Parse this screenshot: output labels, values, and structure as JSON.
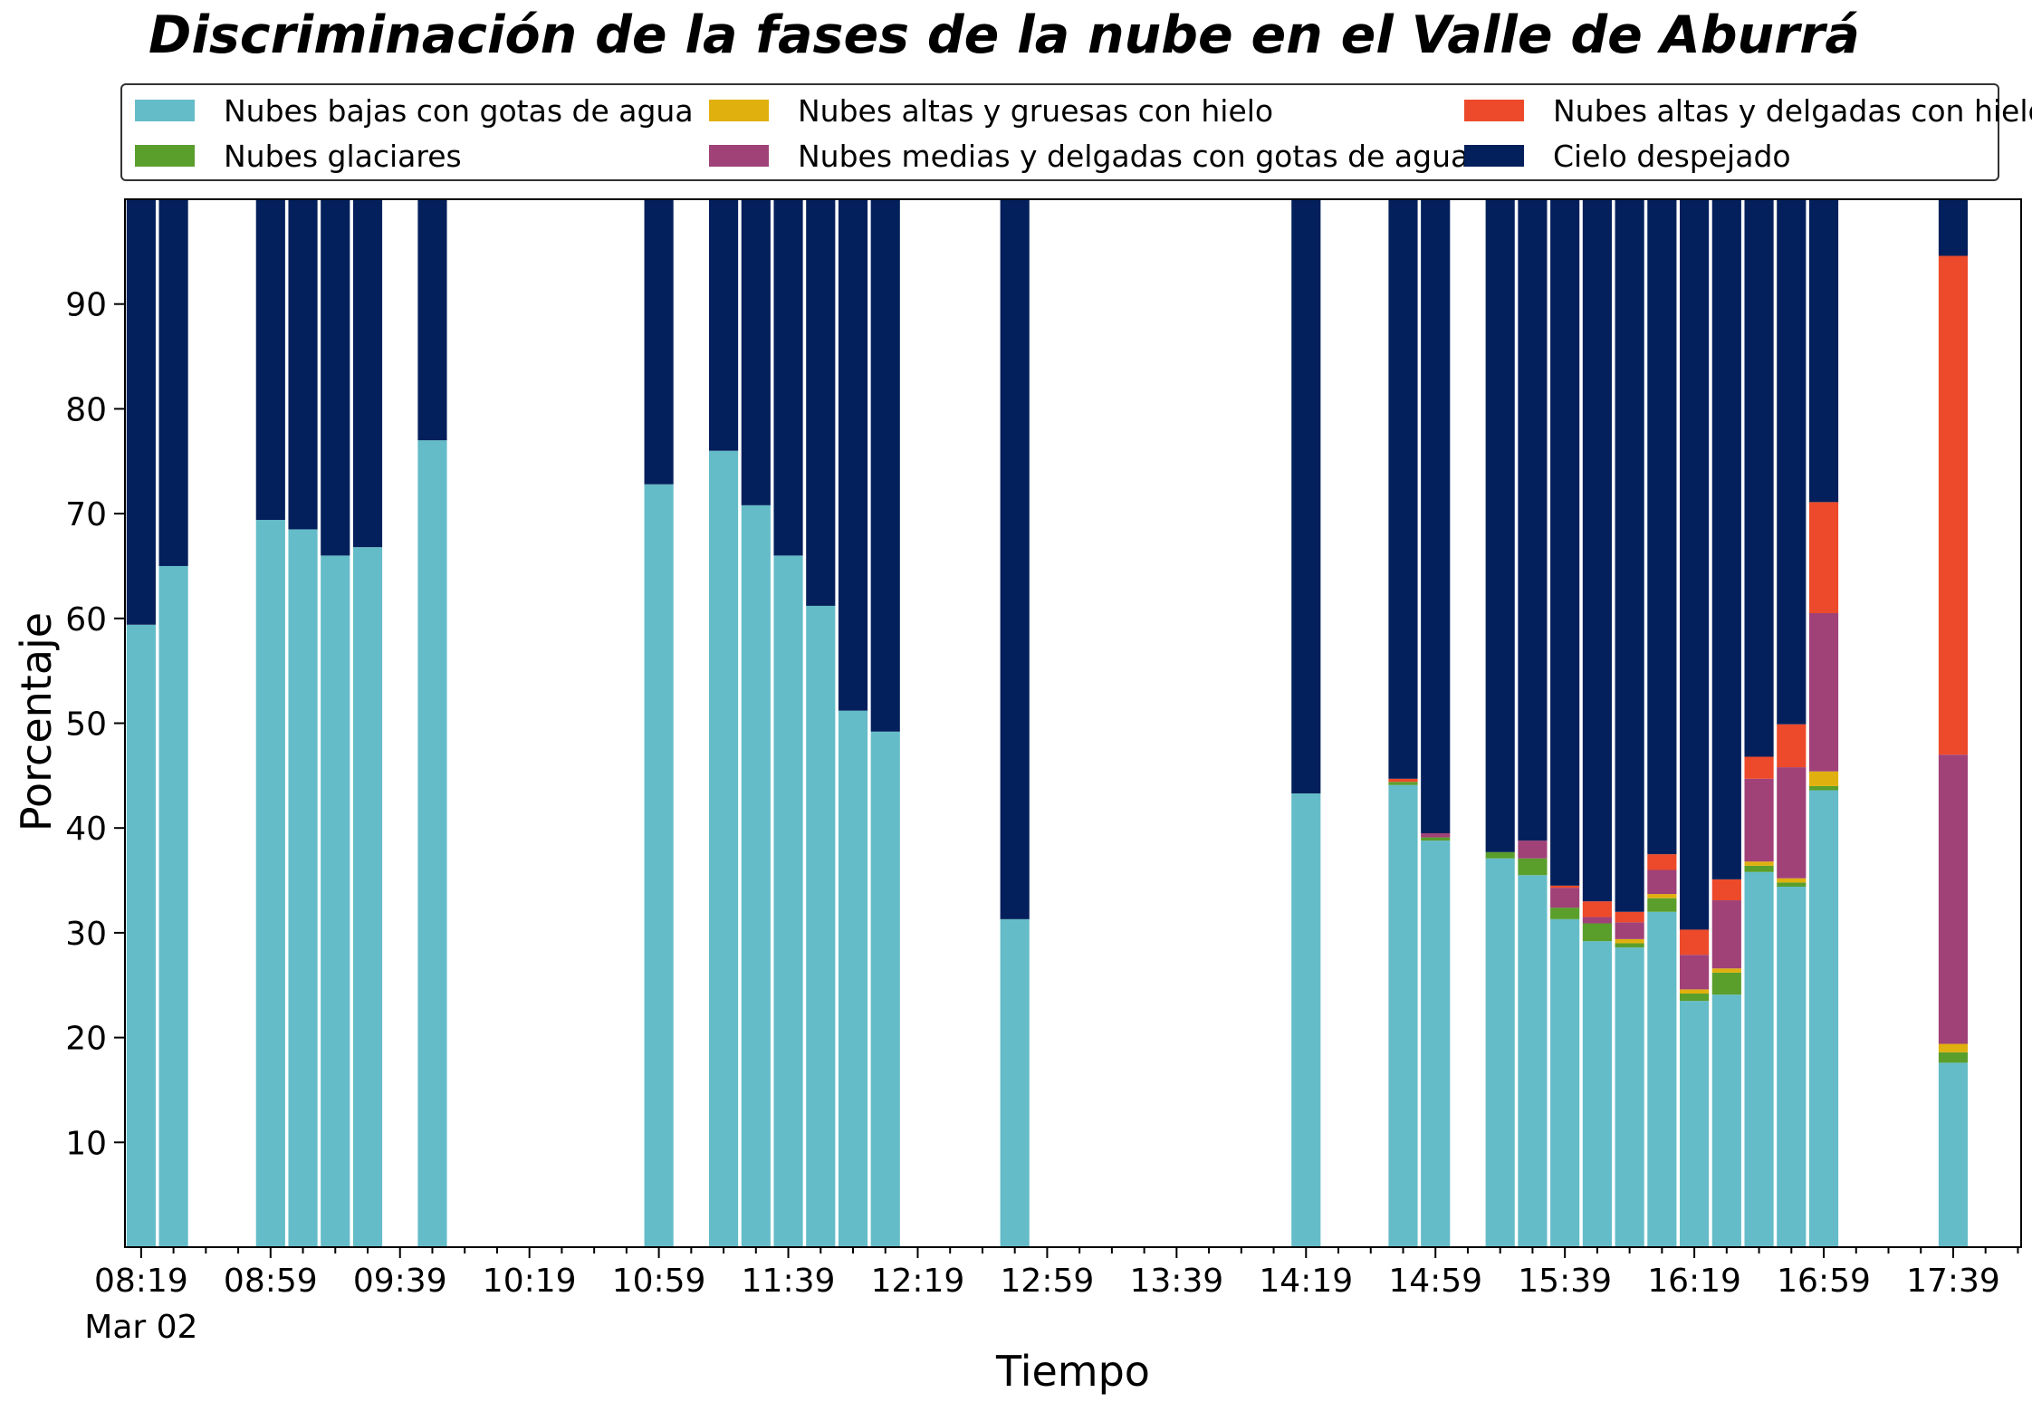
{
  "chart_data": {
    "type": "bar",
    "stacked": true,
    "title": "Discriminación de la fases de la nube en el Valle de Aburrá",
    "xlabel": "Tiempo",
    "ylabel": "Porcentaje",
    "ylim": [
      0,
      100
    ],
    "yticks": [
      10,
      20,
      30,
      40,
      50,
      60,
      70,
      80,
      90
    ],
    "x_tick_labels": [
      "08:19",
      "08:59",
      "09:39",
      "10:19",
      "10:59",
      "11:39",
      "12:19",
      "12:59",
      "13:39",
      "14:19",
      "14:59",
      "15:39",
      "16:19",
      "16:59",
      "17:39"
    ],
    "x_date_label": "Mar 02",
    "x_time_range": [
      "08:19",
      "18:00"
    ],
    "bar_width_minutes": 9,
    "legend_position": "top",
    "grid": false,
    "series": [
      {
        "name": "Nubes bajas con gotas de agua",
        "color": "#64bcc8"
      },
      {
        "name": "Nubes glaciares",
        "color": "#5a9e2c"
      },
      {
        "name": "Nubes altas y gruesas con hielo",
        "color": "#e0b00e"
      },
      {
        "name": "Nubes medias y delgadas con gotas de agua",
        "color": "#a04178"
      },
      {
        "name": "Nubes altas y delgadas con hielo",
        "color": "#ec4a2a"
      },
      {
        "name": "Cielo despejado",
        "color": "#04205c"
      }
    ],
    "bars": [
      {
        "time": "08:19",
        "values": [
          59.4,
          0,
          0,
          0,
          0,
          40.6
        ]
      },
      {
        "time": "08:29",
        "values": [
          65.0,
          0,
          0,
          0,
          0,
          35.0
        ]
      },
      {
        "time": "08:59",
        "values": [
          69.4,
          0,
          0,
          0,
          0,
          30.6
        ]
      },
      {
        "time": "09:09",
        "values": [
          68.5,
          0,
          0,
          0,
          0,
          31.5
        ]
      },
      {
        "time": "09:19",
        "values": [
          66.0,
          0,
          0,
          0,
          0,
          34.0
        ]
      },
      {
        "time": "09:29",
        "values": [
          66.8,
          0,
          0,
          0,
          0,
          33.2
        ]
      },
      {
        "time": "09:49",
        "values": [
          77.0,
          0,
          0,
          0,
          0,
          23.0
        ]
      },
      {
        "time": "10:59",
        "values": [
          72.8,
          0,
          0,
          0,
          0,
          27.2
        ]
      },
      {
        "time": "11:19",
        "values": [
          76.0,
          0,
          0,
          0,
          0,
          24.0
        ]
      },
      {
        "time": "11:29",
        "values": [
          70.8,
          0,
          0,
          0,
          0,
          29.2
        ]
      },
      {
        "time": "11:39",
        "values": [
          66.0,
          0,
          0,
          0,
          0,
          34.0
        ]
      },
      {
        "time": "11:49",
        "values": [
          61.2,
          0,
          0,
          0,
          0,
          38.8
        ]
      },
      {
        "time": "11:59",
        "values": [
          51.2,
          0,
          0,
          0,
          0,
          48.8
        ]
      },
      {
        "time": "12:09",
        "values": [
          49.2,
          0,
          0,
          0,
          0,
          50.8
        ]
      },
      {
        "time": "12:49",
        "values": [
          31.3,
          0,
          0,
          0,
          0,
          68.7
        ]
      },
      {
        "time": "14:19",
        "values": [
          43.3,
          0,
          0,
          0,
          0,
          56.7
        ]
      },
      {
        "time": "14:49",
        "values": [
          44.1,
          0.3,
          0,
          0,
          0.3,
          55.3
        ]
      },
      {
        "time": "14:59",
        "values": [
          38.8,
          0.3,
          0,
          0.4,
          0,
          60.5
        ]
      },
      {
        "time": "15:19",
        "values": [
          37.1,
          0.6,
          0,
          0,
          0,
          62.3
        ]
      },
      {
        "time": "15:29",
        "values": [
          35.5,
          1.6,
          0,
          1.7,
          0,
          61.2
        ]
      },
      {
        "time": "15:39",
        "values": [
          31.3,
          1.1,
          0,
          1.9,
          0.2,
          65.5
        ]
      },
      {
        "time": "15:49",
        "values": [
          29.2,
          1.7,
          0,
          0.6,
          1.5,
          67.0
        ]
      },
      {
        "time": "15:59",
        "values": [
          28.6,
          0.4,
          0.4,
          1.6,
          1.0,
          68.0
        ]
      },
      {
        "time": "16:09",
        "values": [
          32.0,
          1.3,
          0.4,
          2.3,
          1.5,
          62.5
        ]
      },
      {
        "time": "16:19",
        "values": [
          23.5,
          0.7,
          0.4,
          3.3,
          2.4,
          69.7
        ]
      },
      {
        "time": "16:29",
        "values": [
          24.1,
          2.1,
          0.4,
          6.5,
          2.0,
          64.9
        ]
      },
      {
        "time": "16:39",
        "values": [
          35.8,
          0.6,
          0.4,
          7.9,
          2.1,
          53.2
        ]
      },
      {
        "time": "16:49",
        "values": [
          34.4,
          0.4,
          0.4,
          10.6,
          4.1,
          50.1
        ]
      },
      {
        "time": "16:59",
        "values": [
          43.6,
          0.4,
          1.4,
          15.1,
          10.6,
          28.9
        ]
      },
      {
        "time": "17:39",
        "values": [
          17.6,
          1.0,
          0.8,
          27.6,
          47.6,
          5.4
        ]
      }
    ]
  }
}
